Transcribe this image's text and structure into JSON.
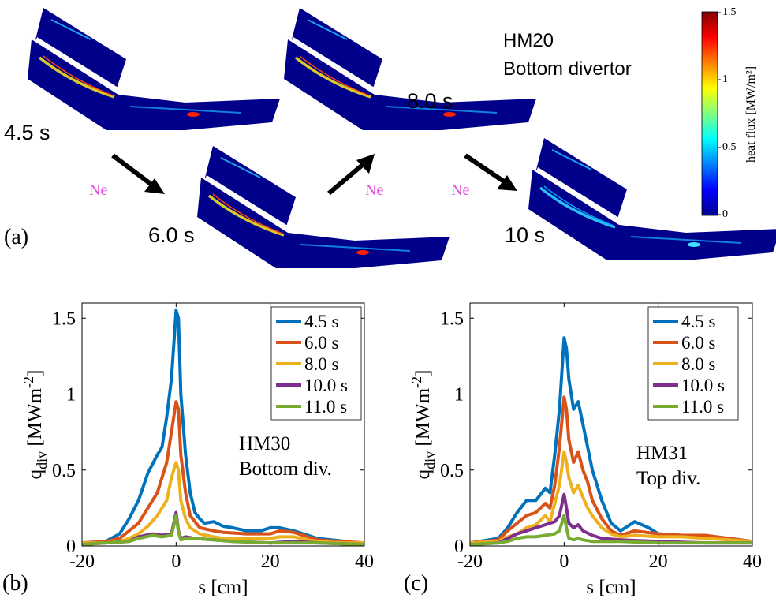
{
  "panel_a": {
    "letter": "(a)",
    "title_line1": "HM20",
    "title_line2": "Bottom divertor",
    "snapshots": [
      {
        "time": "4.5 s"
      },
      {
        "time": "6.0 s"
      },
      {
        "time": "8.0 s"
      },
      {
        "time": "10 s"
      }
    ],
    "ne_label": "Ne",
    "colorbar": {
      "label": "heat flux [MW/m²]",
      "ticks": [
        "1.5",
        "1",
        "0.5",
        "0"
      ],
      "range": [
        0,
        1.5
      ],
      "colormap": "jet"
    }
  },
  "chart_data": [
    {
      "type": "line",
      "panel_letter": "(b)",
      "annotation_line1": "HM30",
      "annotation_line2": "Bottom div.",
      "xlabel": "s [cm]",
      "ylabel": "q_div [MWm^-2]",
      "xlim": [
        -20,
        40
      ],
      "ylim": [
        0,
        1.6
      ],
      "xticks": [
        "-20",
        "0",
        "20",
        "40"
      ],
      "yticks": [
        "0",
        "0.5",
        "1",
        "1.5"
      ],
      "legend_position": "top-right",
      "series": [
        {
          "name": "4.5 s",
          "color": "#0072bd",
          "x": [
            -22,
            -15,
            -12,
            -10,
            -8,
            -6,
            -4,
            -3,
            -2,
            -1,
            0,
            0.5,
            1,
            2,
            3,
            4,
            5,
            6,
            8,
            10,
            12,
            15,
            18,
            20,
            22,
            25,
            28,
            30,
            33,
            36,
            38,
            40
          ],
          "y": [
            0.02,
            0.03,
            0.08,
            0.18,
            0.3,
            0.48,
            0.6,
            0.65,
            0.85,
            1.1,
            1.55,
            1.5,
            1.0,
            0.6,
            0.35,
            0.22,
            0.18,
            0.15,
            0.16,
            0.13,
            0.12,
            0.1,
            0.1,
            0.12,
            0.12,
            0.1,
            0.07,
            0.05,
            0.04,
            0.03,
            0.02,
            0.02
          ]
        },
        {
          "name": "6.0 s",
          "color": "#d95319",
          "x": [
            -22,
            -15,
            -12,
            -10,
            -8,
            -6,
            -4,
            -2,
            -1,
            0,
            0.5,
            1,
            2,
            3,
            5,
            8,
            10,
            15,
            20,
            22,
            25,
            28,
            30,
            35,
            40
          ],
          "y": [
            0.02,
            0.03,
            0.05,
            0.1,
            0.15,
            0.25,
            0.35,
            0.55,
            0.75,
            0.95,
            0.9,
            0.6,
            0.35,
            0.2,
            0.12,
            0.1,
            0.09,
            0.08,
            0.08,
            0.1,
            0.09,
            0.06,
            0.04,
            0.03,
            0.02
          ]
        },
        {
          "name": "8.0 s",
          "color": "#edb120",
          "x": [
            -22,
            -15,
            -12,
            -10,
            -8,
            -6,
            -4,
            -2,
            -1,
            0,
            0.5,
            1,
            2,
            3,
            5,
            8,
            10,
            15,
            20,
            22,
            25,
            28,
            30,
            35,
            40
          ],
          "y": [
            0.02,
            0.02,
            0.03,
            0.05,
            0.08,
            0.13,
            0.2,
            0.3,
            0.45,
            0.55,
            0.5,
            0.3,
            0.18,
            0.12,
            0.08,
            0.06,
            0.05,
            0.05,
            0.05,
            0.06,
            0.06,
            0.04,
            0.03,
            0.02,
            0.02
          ]
        },
        {
          "name": "10.0 s",
          "color": "#7e2f8e",
          "x": [
            -22,
            -15,
            -10,
            -8,
            -5,
            -3,
            -1,
            0,
            0.5,
            1,
            2,
            4,
            8,
            12,
            20,
            25,
            30,
            40
          ],
          "y": [
            0.01,
            0.02,
            0.03,
            0.06,
            0.08,
            0.07,
            0.08,
            0.22,
            0.1,
            0.05,
            0.06,
            0.05,
            0.04,
            0.03,
            0.02,
            0.03,
            0.02,
            0.01
          ]
        },
        {
          "name": "11.0 s",
          "color": "#77ac30",
          "x": [
            -22,
            -15,
            -10,
            -8,
            -5,
            -3,
            -1,
            0,
            0.5,
            1,
            2,
            4,
            8,
            12,
            20,
            25,
            30,
            40
          ],
          "y": [
            0.01,
            0.02,
            0.03,
            0.05,
            0.07,
            0.06,
            0.07,
            0.2,
            0.09,
            0.04,
            0.05,
            0.05,
            0.04,
            0.03,
            0.02,
            0.02,
            0.02,
            0.01
          ]
        }
      ]
    },
    {
      "type": "line",
      "panel_letter": "(c)",
      "annotation_line1": "HM31",
      "annotation_line2": "Top div.",
      "xlabel": "s [cm]",
      "ylabel": "q_div [MWm^-2]",
      "xlim": [
        -20,
        40
      ],
      "ylim": [
        0,
        1.6
      ],
      "xticks": [
        "-20",
        "0",
        "20",
        "40"
      ],
      "yticks": [
        "0",
        "0.5",
        "1",
        "1.5"
      ],
      "legend_position": "top-right",
      "series": [
        {
          "name": "4.5 s",
          "color": "#0072bd",
          "x": [
            -20,
            -14,
            -12,
            -10,
            -8,
            -6,
            -4,
            -3,
            -2,
            -1,
            0,
            0.5,
            1,
            2,
            3,
            4,
            5,
            6,
            8,
            10,
            12,
            15,
            18,
            20,
            25,
            30,
            35,
            40
          ],
          "y": [
            0.02,
            0.05,
            0.12,
            0.22,
            0.3,
            0.3,
            0.38,
            0.35,
            0.6,
            0.9,
            1.37,
            1.3,
            1.1,
            0.9,
            0.95,
            0.8,
            0.65,
            0.5,
            0.3,
            0.15,
            0.1,
            0.16,
            0.12,
            0.08,
            0.07,
            0.06,
            0.05,
            0.03
          ]
        },
        {
          "name": "6.0 s",
          "color": "#d95319",
          "x": [
            -20,
            -14,
            -12,
            -10,
            -8,
            -6,
            -4,
            -3,
            -2,
            -1,
            0,
            0.5,
            1,
            2,
            3,
            4,
            5,
            6,
            8,
            10,
            12,
            15,
            20,
            25,
            30,
            35,
            40
          ],
          "y": [
            0.02,
            0.04,
            0.1,
            0.15,
            0.2,
            0.22,
            0.28,
            0.25,
            0.4,
            0.65,
            0.98,
            0.9,
            0.7,
            0.55,
            0.62,
            0.5,
            0.42,
            0.3,
            0.18,
            0.1,
            0.07,
            0.1,
            0.08,
            0.07,
            0.07,
            0.05,
            0.03
          ]
        },
        {
          "name": "8.0 s",
          "color": "#edb120",
          "x": [
            -20,
            -14,
            -12,
            -10,
            -8,
            -6,
            -4,
            -3,
            -2,
            -1,
            0,
            0.5,
            1,
            2,
            3,
            4,
            5,
            6,
            8,
            10,
            12,
            15,
            20,
            25,
            30,
            35,
            40
          ],
          "y": [
            0.02,
            0.03,
            0.06,
            0.08,
            0.12,
            0.14,
            0.2,
            0.16,
            0.28,
            0.4,
            0.62,
            0.55,
            0.45,
            0.35,
            0.4,
            0.32,
            0.25,
            0.2,
            0.12,
            0.08,
            0.06,
            0.07,
            0.06,
            0.06,
            0.05,
            0.04,
            0.03
          ]
        },
        {
          "name": "10.0 s",
          "color": "#7e2f8e",
          "x": [
            -20,
            -14,
            -12,
            -10,
            -8,
            -6,
            -4,
            -2,
            -1,
            0,
            0.5,
            1,
            2,
            3,
            4,
            6,
            8,
            12,
            20,
            30,
            40
          ],
          "y": [
            0.01,
            0.02,
            0.05,
            0.08,
            0.1,
            0.12,
            0.14,
            0.16,
            0.2,
            0.34,
            0.25,
            0.15,
            0.12,
            0.14,
            0.1,
            0.07,
            0.05,
            0.04,
            0.03,
            0.02,
            0.02
          ]
        },
        {
          "name": "11.0 s",
          "color": "#77ac30",
          "x": [
            -20,
            -14,
            -12,
            -10,
            -8,
            -6,
            -4,
            -2,
            -1,
            0,
            0.5,
            1,
            2,
            3,
            4,
            6,
            8,
            12,
            20,
            30,
            40
          ],
          "y": [
            0.01,
            0.02,
            0.03,
            0.05,
            0.06,
            0.06,
            0.07,
            0.08,
            0.1,
            0.2,
            0.12,
            0.05,
            0.04,
            0.05,
            0.04,
            0.03,
            0.03,
            0.03,
            0.02,
            0.02,
            0.02
          ]
        }
      ]
    }
  ]
}
